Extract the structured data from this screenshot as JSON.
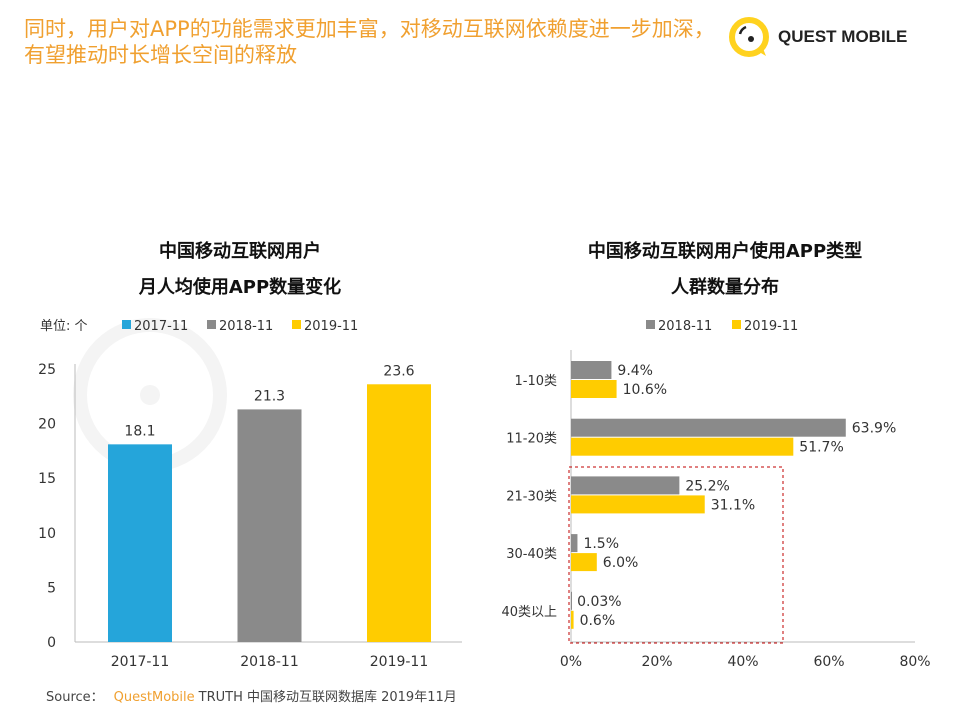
{
  "headline": "同时，用户对APP的功能需求更加丰富，对移动互联网依赖度进一步加深，有望推动时长增长空间的释放",
  "logo": {
    "text": "QUEST MOBILE"
  },
  "watermark": "QUESTMOBILE",
  "colors": {
    "c2017": "#25a5da",
    "c2018": "#8a8a8a",
    "c2019": "#ffcc00",
    "accent": "#f0a030",
    "highlight_box": "#c00000"
  },
  "chart_data": [
    {
      "type": "bar",
      "title_lines": [
        "中国移动互联网用户",
        "月人均使用APP数量变化"
      ],
      "unit_label": "单位: 个",
      "categories": [
        "2017-11",
        "2018-11",
        "2019-11"
      ],
      "values": [
        18.1,
        21.3,
        23.6
      ],
      "legend": [
        "2017-11",
        "2018-11",
        "2019-11"
      ],
      "legend_position": "top",
      "ylim": [
        0,
        25
      ],
      "yticks": [
        "0",
        "5",
        "10",
        "15",
        "20",
        "25"
      ],
      "grid": false
    },
    {
      "type": "bar",
      "orientation": "horizontal",
      "title_lines": [
        "中国移动互联网用户使用APP类型",
        "人群数量分布"
      ],
      "categories": [
        "1-10类",
        "11-20类",
        "21-30类",
        "30-40类",
        "40类以上"
      ],
      "series": [
        {
          "name": "2018-11",
          "values": [
            9.4,
            63.9,
            25.2,
            1.5,
            0.03
          ],
          "labels": [
            "9.4%",
            "63.9%",
            "25.2%",
            "1.5%",
            "0.03%"
          ]
        },
        {
          "name": "2019-11",
          "values": [
            10.6,
            51.7,
            31.1,
            6.0,
            0.6
          ],
          "labels": [
            "10.6%",
            "51.7%",
            "31.1%",
            "6.0%",
            "0.6%"
          ]
        }
      ],
      "legend_position": "top",
      "xlim": [
        0,
        80
      ],
      "xticks": [
        "0%",
        "20%",
        "40%",
        "60%",
        "80%"
      ],
      "grid": false,
      "highlight": "21-30类 to 40类以上 (dashed box)"
    }
  ],
  "source": {
    "label": "Source：",
    "brand": "QuestMobile",
    "text": "TRUTH 中国移动互联网数据库 2019年11月"
  }
}
